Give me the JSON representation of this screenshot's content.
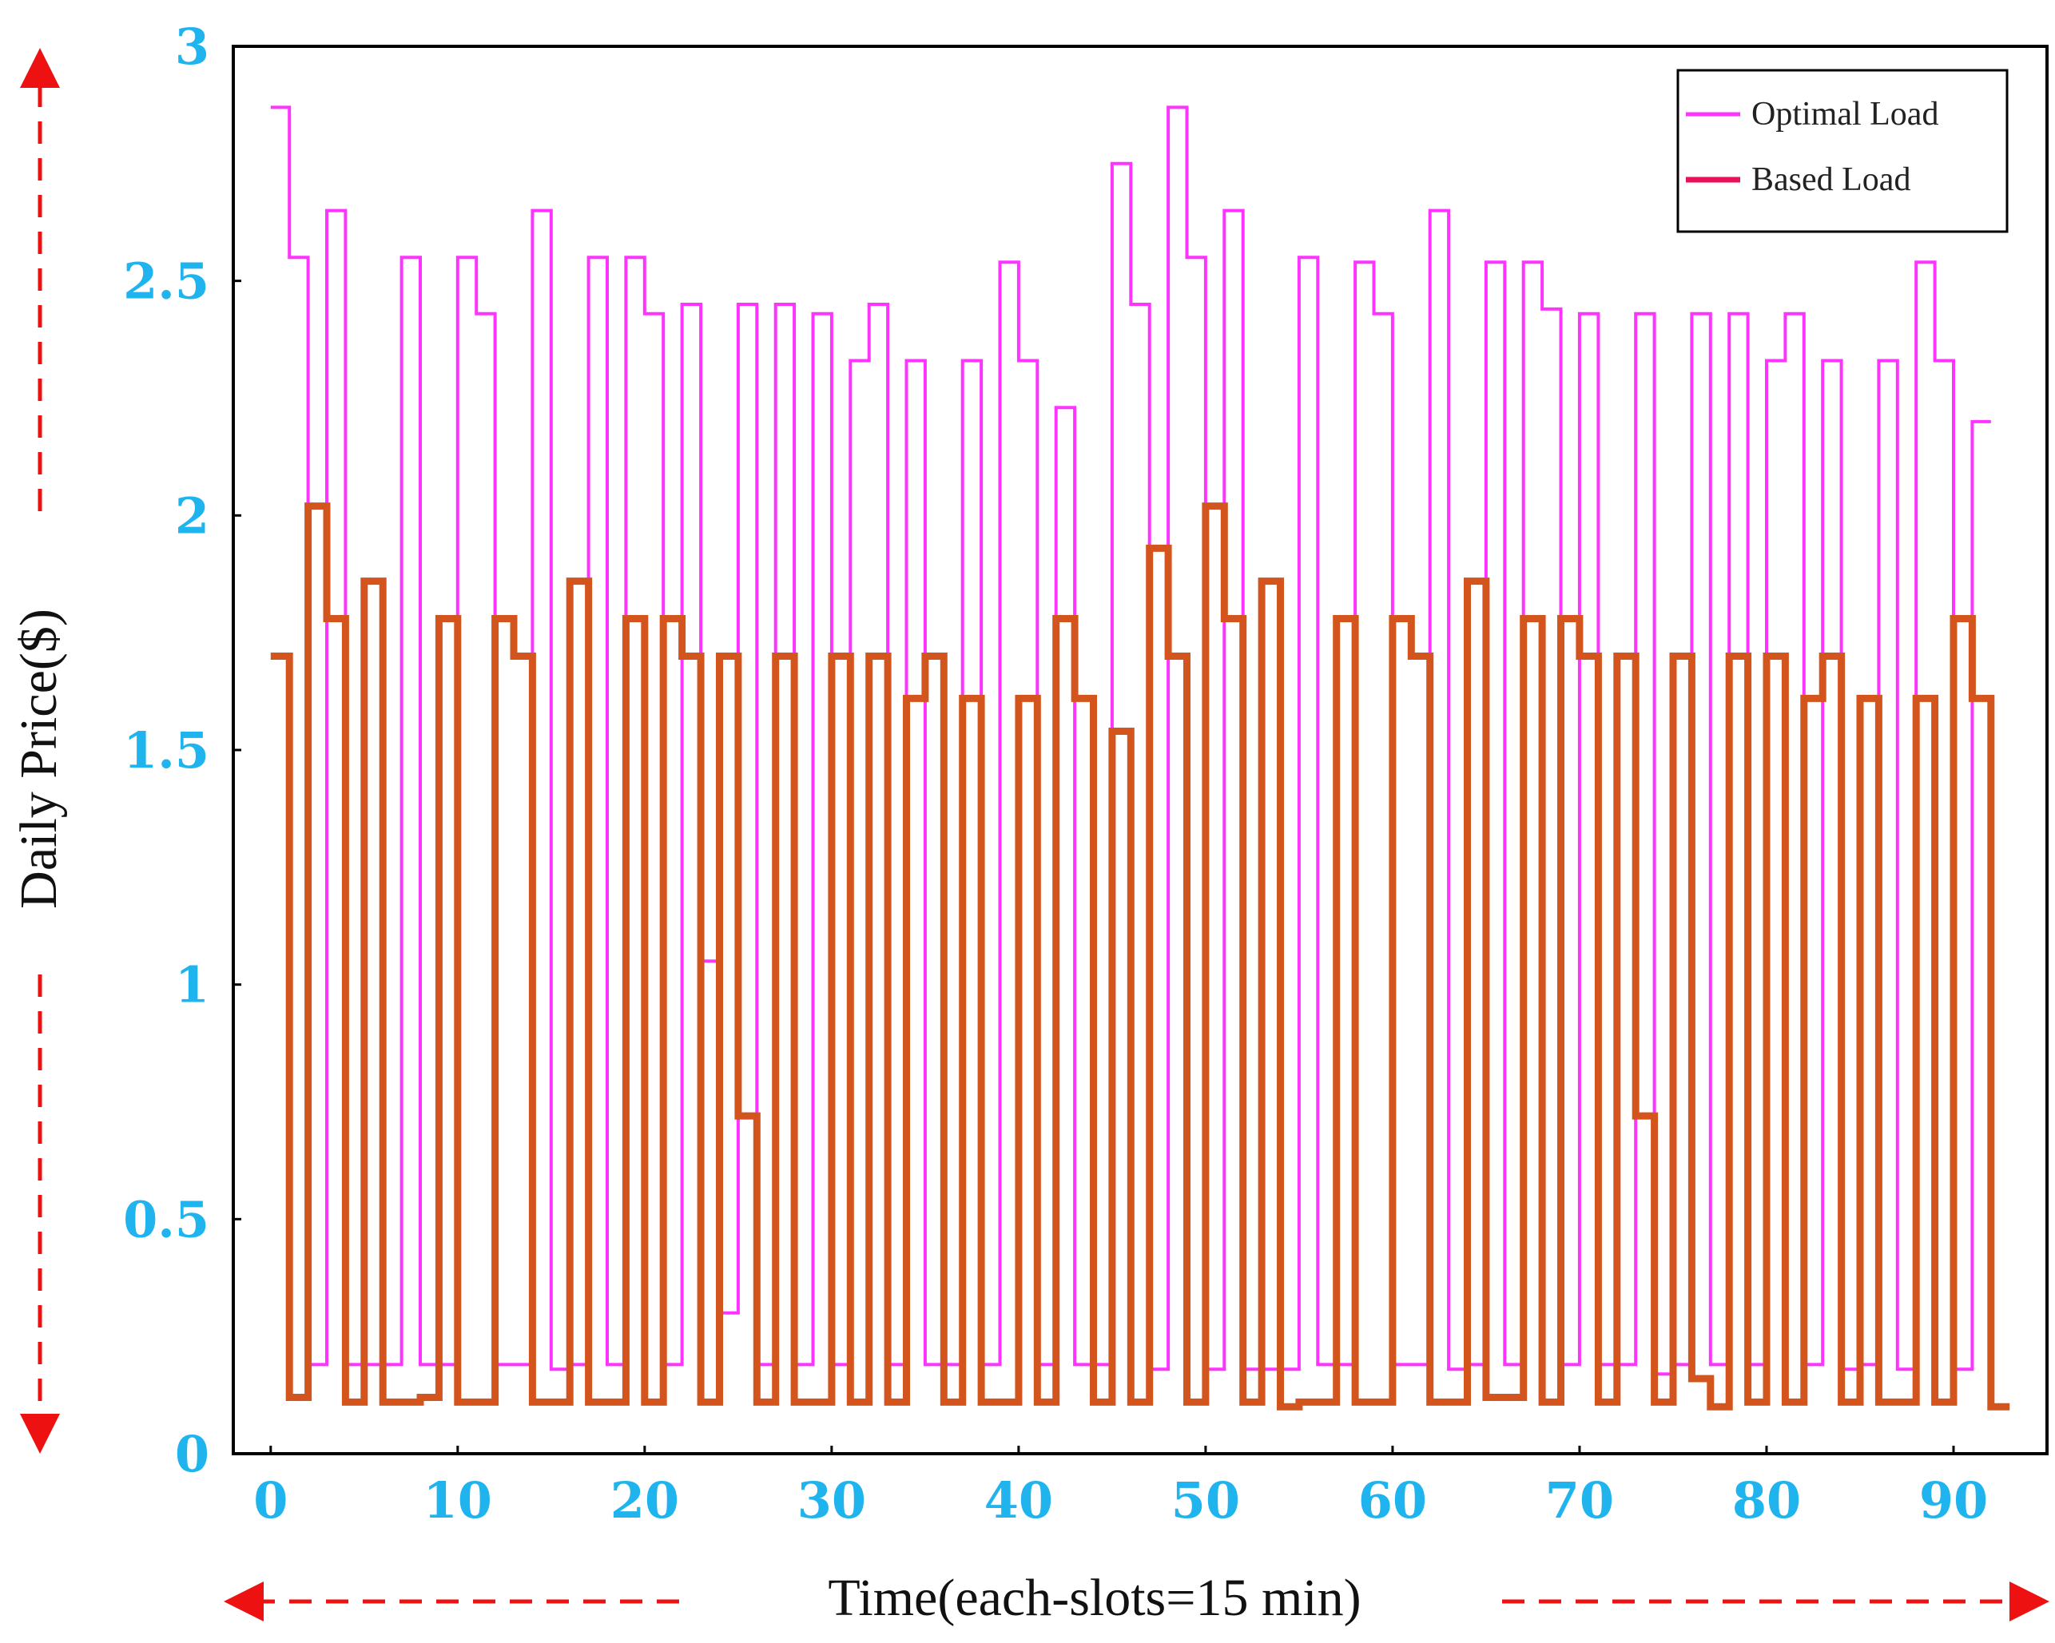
{
  "chart_data": {
    "type": "line",
    "step": true,
    "title": "",
    "xlabel": "Time(each-slots=15 min)",
    "ylabel": "Daily Price($)",
    "xlim": [
      -2,
      95
    ],
    "ylim": [
      0,
      3
    ],
    "xticks": [
      0,
      10,
      20,
      30,
      40,
      50,
      60,
      70,
      80,
      90
    ],
    "yticks": [
      0,
      0.5,
      1,
      1.5,
      2,
      2.5,
      3
    ],
    "xtick_labels": [
      "0",
      "10",
      "20",
      "30",
      "40",
      "50",
      "60",
      "70",
      "80",
      "90"
    ],
    "ytick_labels": [
      "0",
      "0.5",
      "1",
      "1.5",
      "2",
      "2.5",
      "3"
    ],
    "legend_position": "top-right",
    "series": [
      {
        "name": "Optimal Load",
        "color": "#ff33ff",
        "x": [
          0,
          1,
          2,
          3,
          4,
          5,
          6,
          7,
          8,
          9,
          10,
          11,
          12,
          13,
          14,
          15,
          16,
          17,
          18,
          19,
          20,
          21,
          22,
          23,
          24,
          25,
          26,
          27,
          28,
          29,
          30,
          31,
          32,
          33,
          34,
          35,
          36,
          37,
          38,
          39,
          40,
          41,
          42,
          43,
          44,
          45,
          46,
          47,
          48,
          49,
          50,
          51,
          52,
          53,
          54,
          55,
          56,
          57,
          58,
          59,
          60,
          61,
          62,
          63,
          64,
          65,
          66,
          67,
          68,
          69,
          70,
          71,
          72,
          73,
          74,
          75,
          76,
          77,
          78,
          79,
          80,
          81,
          82,
          83,
          84,
          85,
          86,
          87,
          88,
          89,
          90,
          91
        ],
        "values": [
          2.87,
          2.55,
          0.19,
          2.65,
          0.19,
          0.19,
          0.19,
          2.55,
          0.19,
          0.19,
          2.55,
          2.43,
          0.19,
          0.19,
          2.65,
          0.18,
          0.19,
          2.55,
          0.19,
          2.55,
          2.43,
          0.19,
          2.45,
          1.05,
          0.3,
          2.45,
          0.19,
          2.45,
          0.19,
          2.43,
          0.19,
          2.33,
          2.45,
          0.19,
          2.33,
          0.19,
          0.19,
          2.33,
          0.19,
          2.54,
          2.33,
          0.19,
          2.23,
          0.19,
          0.19,
          2.75,
          2.45,
          0.18,
          2.87,
          2.55,
          0.18,
          2.65,
          0.18,
          0.18,
          0.18,
          2.55,
          0.19,
          0.19,
          2.54,
          2.43,
          0.19,
          0.19,
          2.65,
          0.18,
          0.19,
          2.54,
          0.19,
          2.54,
          2.44,
          0.19,
          2.43,
          0.19,
          0.19,
          2.43,
          0.17,
          0.19,
          2.43,
          0.19,
          2.43,
          0.19,
          2.33,
          2.43,
          0.19,
          2.33,
          0.18,
          0.19,
          2.33,
          0.18,
          2.54,
          2.33,
          0.18,
          2.2
        ]
      },
      {
        "name": "Based Load",
        "color": "#e8115a",
        "x": [
          0,
          1,
          2,
          3,
          4,
          5,
          6,
          7,
          8,
          9,
          10,
          11,
          12,
          13,
          14,
          15,
          16,
          17,
          18,
          19,
          20,
          21,
          22,
          23,
          24,
          25,
          26,
          27,
          28,
          29,
          30,
          31,
          32,
          33,
          34,
          35,
          36,
          37,
          38,
          39,
          40,
          41,
          42,
          43,
          44,
          45,
          46,
          47,
          48,
          49,
          50,
          51,
          52,
          53,
          54,
          55,
          56,
          57,
          58,
          59,
          60,
          61,
          62,
          63,
          64,
          65,
          66,
          67,
          68,
          69,
          70,
          71,
          72,
          73,
          74,
          75,
          76,
          77,
          78,
          79,
          80,
          81,
          82,
          83,
          84,
          85,
          86,
          87,
          88,
          89,
          90,
          91,
          92
        ],
        "values": [
          1.7,
          0.12,
          2.02,
          1.78,
          0.11,
          1.86,
          0.11,
          0.11,
          0.12,
          1.78,
          0.11,
          0.11,
          1.78,
          1.7,
          0.11,
          0.11,
          1.86,
          0.11,
          0.11,
          1.78,
          0.11,
          1.78,
          1.7,
          0.11,
          1.7,
          0.72,
          0.11,
          1.7,
          0.11,
          0.11,
          1.7,
          0.11,
          1.7,
          0.11,
          1.61,
          1.7,
          0.11,
          1.61,
          0.11,
          0.11,
          1.61,
          0.11,
          1.78,
          1.61,
          0.11,
          1.54,
          0.11,
          1.93,
          1.7,
          0.11,
          2.02,
          1.78,
          0.11,
          1.86,
          0.1,
          0.11,
          0.11,
          1.78,
          0.11,
          0.11,
          1.78,
          1.7,
          0.11,
          0.11,
          1.86,
          0.12,
          0.12,
          1.78,
          0.11,
          1.78,
          1.7,
          0.11,
          1.7,
          0.72,
          0.11,
          1.7,
          0.16,
          0.1,
          1.7,
          0.11,
          1.7,
          0.11,
          1.61,
          1.7,
          0.11,
          1.61,
          0.11,
          0.11,
          1.61,
          0.11,
          1.78,
          1.61,
          0.1
        ]
      }
    ]
  }
}
